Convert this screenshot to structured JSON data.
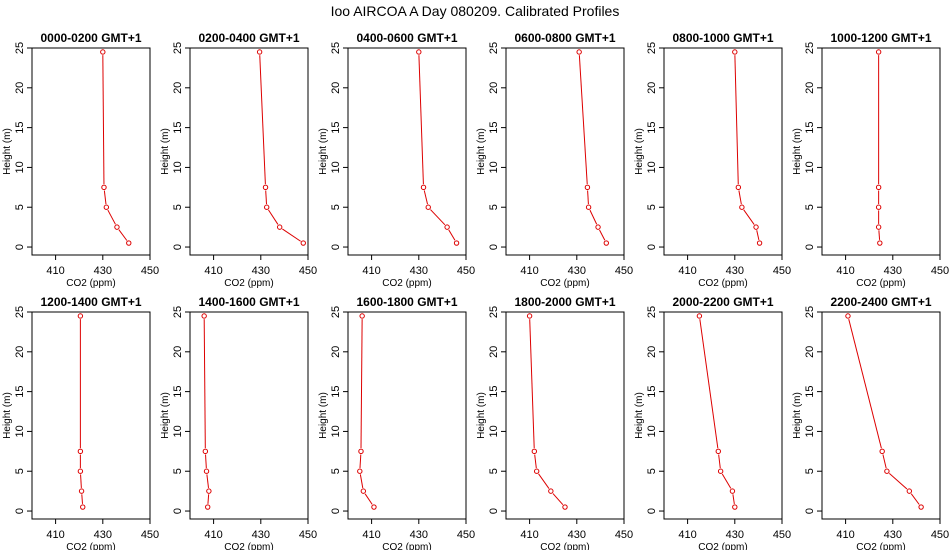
{
  "title": "Ioo AIRCOA A  Day 080209. Calibrated Profiles",
  "colors": {
    "profile": "#dd0000",
    "axis": "#000000",
    "background": "#ffffff"
  },
  "chart_data": {
    "type": "scatter",
    "xlabel": "CO2 (ppm)",
    "ylabel": "Height (m)",
    "xlim": [
      400,
      450
    ],
    "ylim": [
      -1,
      25
    ],
    "xticks": [
      410,
      430,
      450
    ],
    "yticks": [
      0,
      5,
      10,
      15,
      20,
      25
    ],
    "heights": [
      0.5,
      2.5,
      5,
      7.5,
      24.5
    ],
    "panels": [
      {
        "title": "0000-0200 GMT+1",
        "co2": [
          441,
          436,
          431.5,
          430.5,
          430
        ]
      },
      {
        "title": "0200-0400 GMT+1",
        "co2": [
          448,
          438,
          432.5,
          432,
          429.5
        ]
      },
      {
        "title": "0400-0600 GMT+1",
        "co2": [
          446,
          442,
          434,
          432,
          430
        ]
      },
      {
        "title": "0600-0800 GMT+1",
        "co2": [
          442.5,
          439,
          435,
          434.5,
          431
        ]
      },
      {
        "title": "0800-1000 GMT+1",
        "co2": [
          440.5,
          439,
          433,
          431.5,
          430
        ]
      },
      {
        "title": "1000-1200 GMT+1",
        "co2": [
          424.5,
          424,
          424,
          424,
          424
        ]
      },
      {
        "title": "1200-1400 GMT+1",
        "co2": [
          421.5,
          421,
          420.5,
          420.5,
          420.5
        ]
      },
      {
        "title": "1400-1600 GMT+1",
        "co2": [
          407.5,
          408,
          407,
          406.5,
          406
        ]
      },
      {
        "title": "1600-1800 GMT+1",
        "co2": [
          411,
          406.5,
          405,
          405.5,
          406
        ]
      },
      {
        "title": "1800-2000 GMT+1",
        "co2": [
          425,
          419,
          413,
          412,
          410
        ]
      },
      {
        "title": "2000-2200 GMT+1",
        "co2": [
          430,
          429,
          424,
          423,
          415
        ]
      },
      {
        "title": "2200-2400 GMT+1",
        "co2": [
          442,
          437,
          427.5,
          425.5,
          411
        ]
      }
    ]
  }
}
